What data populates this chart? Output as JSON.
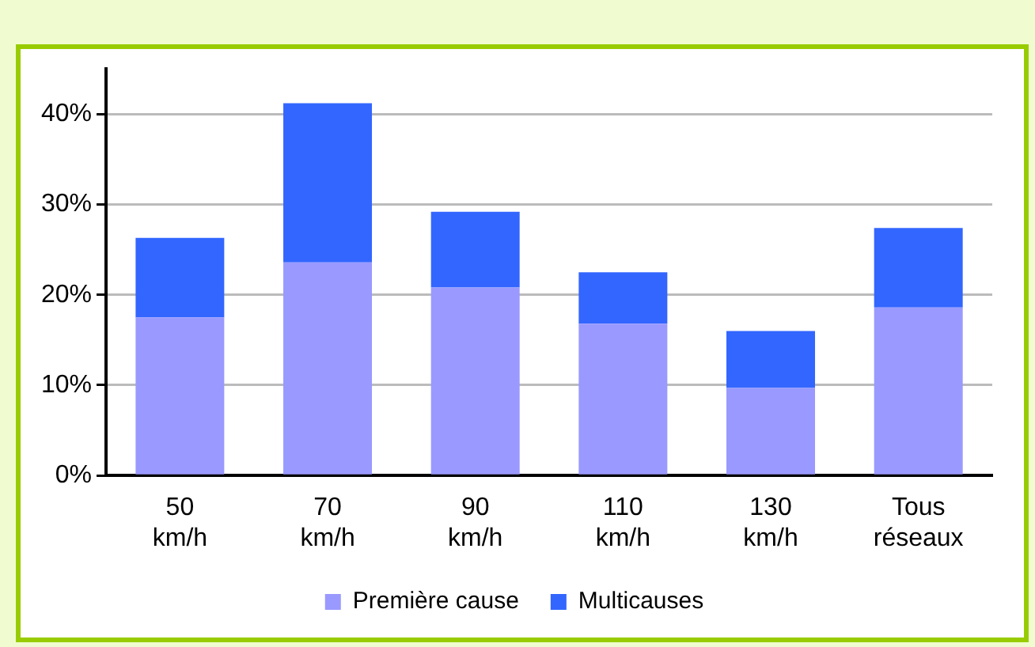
{
  "chart_data": {
    "type": "bar",
    "stacked": true,
    "categories": [
      "50 km/h",
      "70 km/h",
      "90 km/h",
      "110 km/h",
      "130 km/h",
      "Tous réseaux"
    ],
    "series": [
      {
        "name": "Première cause",
        "color": "#9999ff",
        "values": [
          17.5,
          23.6,
          20.8,
          16.8,
          9.7,
          18.6
        ]
      },
      {
        "name": "Multicauses",
        "color": "#3366ff",
        "values": [
          8.8,
          17.6,
          8.4,
          5.7,
          6.3,
          8.8
        ]
      }
    ],
    "ylim": [
      0,
      45
    ],
    "yticks": [
      {
        "value": 0,
        "label": "0%"
      },
      {
        "value": 10,
        "label": "10%"
      },
      {
        "value": 20,
        "label": "20%"
      },
      {
        "value": 30,
        "label": "30%"
      },
      {
        "value": 40,
        "label": "40%"
      }
    ],
    "grid": "y",
    "legend": "bottom"
  }
}
